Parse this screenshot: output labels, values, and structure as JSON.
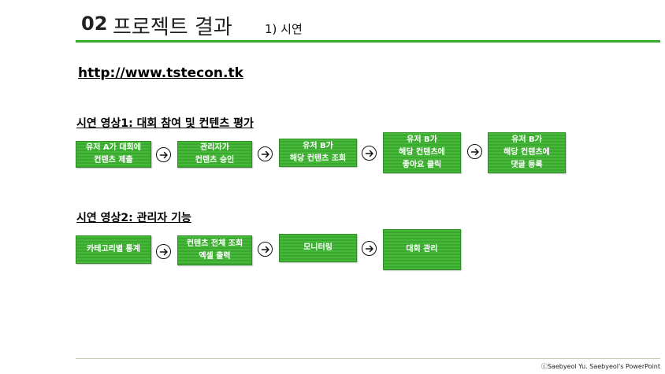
{
  "slide": {
    "number": "02",
    "title": "프로젝트 결과",
    "subtitle": "1) 시연",
    "url": "http://www.tstecon.tk"
  },
  "section1": {
    "heading": "시연 영상1: 대회 참여 및 컨텐츠 평가",
    "steps": [
      {
        "line1": "유저 A가 대회에",
        "line2": "컨텐츠 제출"
      },
      {
        "line1": "관리자가",
        "line2": "컨텐츠 승인"
      },
      {
        "line1": "유저 B가",
        "line2": "해당 컨텐츠 조회"
      },
      {
        "line1": "유저 B가",
        "line2": "해당 컨텐츠에",
        "line3": "좋아요 클릭"
      },
      {
        "line1": "유저 B가",
        "line2": "해당 컨텐츠에",
        "line3": "댓글 등록"
      }
    ]
  },
  "section2": {
    "heading": "시연 영상2: 관리자 기능",
    "steps": [
      {
        "line1": "카테고리별 통계"
      },
      {
        "line1": "컨텐츠 전체 조회",
        "line2": "엑셀 출력"
      },
      {
        "line1": "모니터링"
      },
      {
        "line1": "대회 관리"
      }
    ]
  },
  "icons": {
    "arrow": "circled-right-arrow-icon"
  },
  "colors": {
    "accent": "#3aa82e",
    "box_fill": "#46b93a",
    "box_border": "#2f8f24"
  },
  "footer": {
    "credit": "ⓒSaebyeol Yu. Saebyeol's PowerPoint"
  }
}
